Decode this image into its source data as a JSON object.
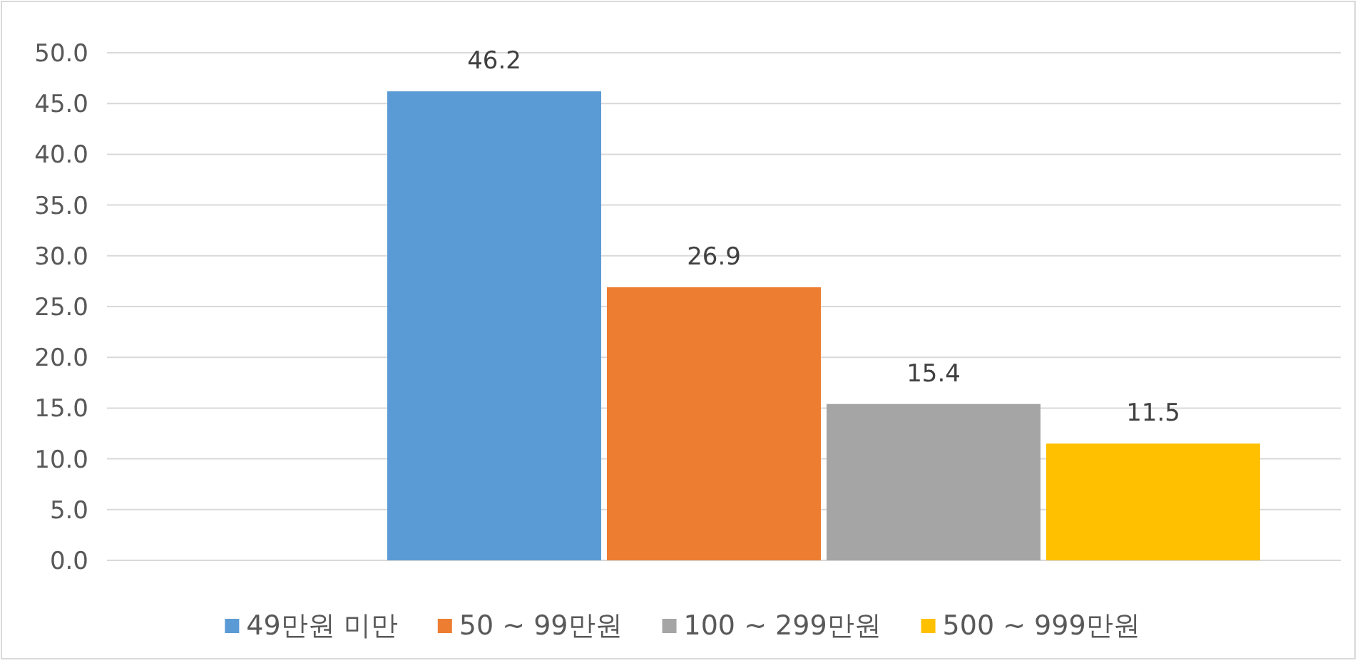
{
  "chart_data": {
    "type": "bar",
    "categories": [
      null
    ],
    "series": [
      {
        "name": "49만원 미만",
        "color": "#5b9bd5",
        "values": [
          46.2
        ]
      },
      {
        "name": "50 ~ 99만원",
        "color": "#ed7d31",
        "values": [
          26.9
        ]
      },
      {
        "name": "100 ~ 299만원",
        "color": "#a5a5a5",
        "values": [
          15.4
        ]
      },
      {
        "name": "500 ~ 999만원",
        "color": "#ffc000",
        "values": [
          11.5
        ]
      }
    ],
    "ylim": [
      0,
      50
    ],
    "yticks": [
      {
        "value": 0,
        "label": "0.0"
      },
      {
        "value": 5,
        "label": "5.0"
      },
      {
        "value": 10,
        "label": "10.0"
      },
      {
        "value": 15,
        "label": "15.0"
      },
      {
        "value": 20,
        "label": "20.0"
      },
      {
        "value": 25,
        "label": "25.0"
      },
      {
        "value": 30,
        "label": "30.0"
      },
      {
        "value": 35,
        "label": "35.0"
      },
      {
        "value": 40,
        "label": "40.0"
      },
      {
        "value": 45,
        "label": "45.0"
      },
      {
        "value": 50,
        "label": "50.0"
      }
    ],
    "grid": "y",
    "data_labels": true,
    "legend": "bottom"
  }
}
